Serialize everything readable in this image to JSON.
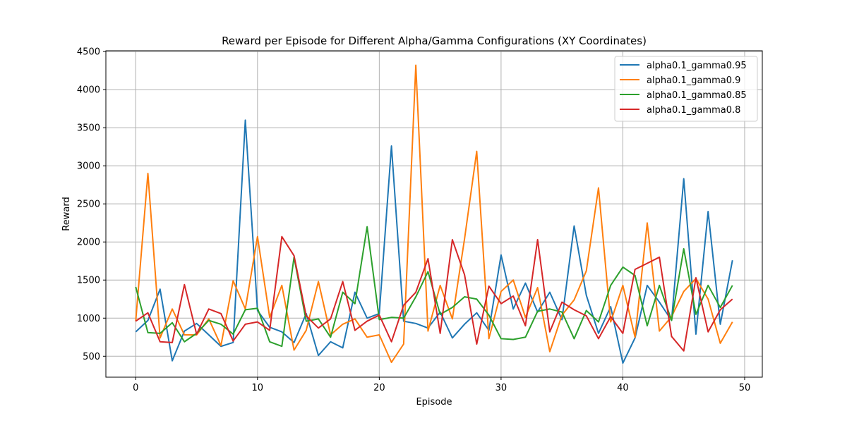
{
  "chart_data": {
    "type": "line",
    "title": "Reward per Episode for Different Alpha/Gamma Configurations (XY Coordinates)",
    "xlabel": "Episode",
    "ylabel": "Reward",
    "xlim": [
      -2.45,
      51.45
    ],
    "ylim": [
      225,
      4510
    ],
    "xticks": [
      0,
      10,
      20,
      30,
      40,
      50
    ],
    "yticks": [
      500,
      1000,
      1500,
      2000,
      2500,
      3000,
      3500,
      4000,
      4500
    ],
    "grid": true,
    "legend_position": "top-right",
    "x": [
      0,
      1,
      2,
      3,
      4,
      5,
      6,
      7,
      8,
      9,
      10,
      11,
      12,
      13,
      14,
      15,
      16,
      17,
      18,
      19,
      20,
      21,
      22,
      23,
      24,
      25,
      26,
      27,
      28,
      29,
      30,
      31,
      32,
      33,
      34,
      35,
      36,
      37,
      38,
      39,
      40,
      41,
      42,
      43,
      44,
      45,
      46,
      47,
      48,
      49
    ],
    "series": [
      {
        "name": "alpha0.1_gamma0.95",
        "color": "#1f77b4",
        "values": [
          820,
          970,
          1380,
          440,
          830,
          930,
          780,
          630,
          680,
          3600,
          1100,
          880,
          820,
          680,
          1060,
          510,
          690,
          610,
          1340,
          1000,
          1060,
          3260,
          960,
          930,
          870,
          1080,
          740,
          920,
          1070,
          840,
          1830,
          1120,
          1460,
          1080,
          1340,
          980,
          2210,
          1300,
          800,
          1150,
          410,
          740,
          1430,
          1210,
          970,
          2830,
          790,
          2400,
          920,
          1760
        ]
      },
      {
        "name": "alpha0.1_gamma0.9",
        "color": "#ff7f0e",
        "values": [
          960,
          2900,
          740,
          1120,
          780,
          780,
          990,
          640,
          1490,
          1120,
          2070,
          1010,
          1430,
          580,
          840,
          1480,
          780,
          920,
          990,
          750,
          780,
          420,
          660,
          4320,
          830,
          1430,
          990,
          2040,
          3190,
          730,
          1350,
          1500,
          1010,
          1400,
          560,
          1040,
          1240,
          1620,
          2710,
          950,
          1430,
          750,
          2250,
          830,
          1020,
          1350,
          1520,
          1250,
          670,
          950
        ]
      },
      {
        "name": "alpha0.1_gamma0.85",
        "color": "#2ca02c",
        "values": [
          1410,
          810,
          800,
          940,
          690,
          800,
          970,
          920,
          790,
          1110,
          1130,
          690,
          630,
          1800,
          960,
          990,
          750,
          1340,
          1190,
          2200,
          980,
          1010,
          1000,
          1280,
          1610,
          1050,
          1140,
          1280,
          1250,
          1040,
          730,
          720,
          750,
          1090,
          1120,
          1080,
          730,
          1100,
          950,
          1430,
          1670,
          1560,
          900,
          1430,
          970,
          1910,
          1050,
          1430,
          1140,
          1430
        ]
      },
      {
        "name": "alpha0.1_gamma0.8",
        "color": "#d62728",
        "values": [
          960,
          1070,
          690,
          680,
          1440,
          790,
          1120,
          1060,
          700,
          920,
          950,
          840,
          2070,
          1820,
          1030,
          870,
          990,
          1480,
          840,
          960,
          1040,
          690,
          1170,
          1340,
          1780,
          800,
          2030,
          1570,
          660,
          1420,
          1190,
          1290,
          900,
          2030,
          820,
          1210,
          1110,
          1030,
          730,
          1020,
          800,
          1640,
          1720,
          1800,
          760,
          570,
          1530,
          820,
          1110,
          1250
        ]
      }
    ]
  }
}
